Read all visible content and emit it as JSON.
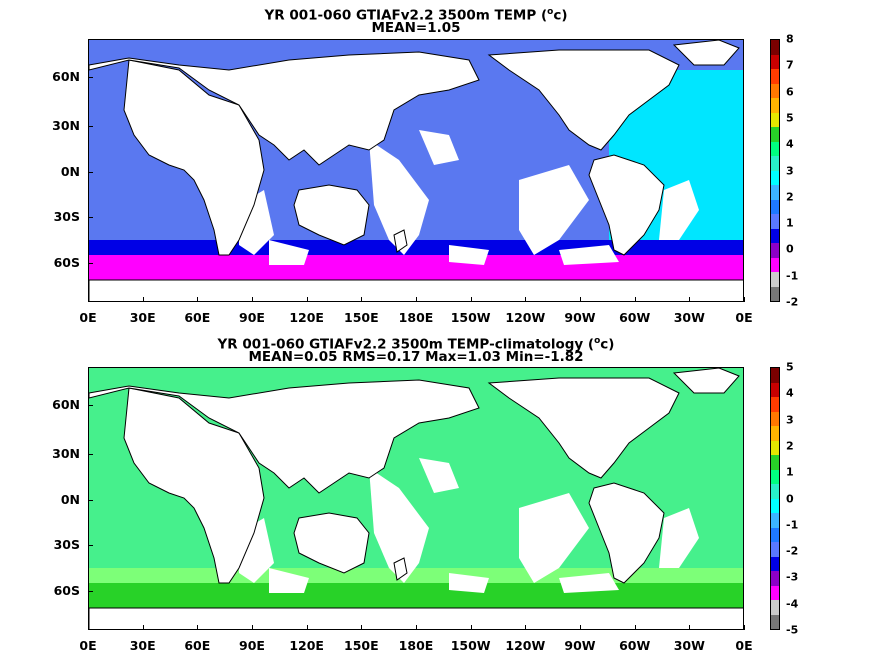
{
  "panels": [
    {
      "title_line1_pre": "YR 001-060 GTIAFv2.2 3500m TEMP (",
      "title_line1_sup": "o",
      "title_line1_post": "c)",
      "title_line2": "MEAN=1.05",
      "colorbar_labels": [
        "8",
        "7",
        "6",
        "5",
        "4",
        "3",
        "2",
        "1",
        "0",
        "-1",
        "-2"
      ],
      "colorbar_colors": [
        "#7a0000",
        "#c80000",
        "#ff3c00",
        "#ff7800",
        "#ffb400",
        "#e6e600",
        "#28d228",
        "#00ff80",
        "#28f0c8",
        "#00ffff",
        "#3cb4ff",
        "#1e78ff",
        "#5a78ff",
        "#0000e6",
        "#8c00c8",
        "#ff00ff",
        "#cccccc",
        "#777777"
      ],
      "ocean_color": "#5a78f0",
      "south_color": "#0000e6",
      "polar_color": "#ff00ff",
      "atlantic_color": "#00e6ff"
    },
    {
      "title_line1_pre": "YR 001-060 GTIAFv2.2 3500m TEMP-climatology (",
      "title_line1_sup": "o",
      "title_line1_post": "c)",
      "title_line2": "MEAN=0.05   RMS=0.17   Max=1.03   Min=-1.82",
      "colorbar_labels": [
        "5",
        "4",
        "3",
        "2",
        "1",
        "0",
        "-1",
        "-2",
        "-3",
        "-4",
        "-5"
      ],
      "colorbar_colors": [
        "#7a0000",
        "#c80000",
        "#ff3c00",
        "#ff7800",
        "#ffb400",
        "#e6e600",
        "#28d228",
        "#00ff80",
        "#28f0c8",
        "#00ffff",
        "#3cb4ff",
        "#1e78ff",
        "#5a78ff",
        "#0000e6",
        "#8c00c8",
        "#ff00ff",
        "#cccccc",
        "#777777"
      ],
      "ocean_color": "#46f08c",
      "south_color": "#7dff78",
      "polar_color": "#28d228",
      "atlantic_color": "#46f08c"
    }
  ],
  "x_axis_labels": [
    "0E",
    "30E",
    "60E",
    "90E",
    "120E",
    "150E",
    "180E",
    "150W",
    "120W",
    "90W",
    "60W",
    "30W",
    "0E"
  ],
  "y_axis_labels": [
    "60N",
    "30N",
    "0N",
    "30S",
    "60S"
  ]
}
